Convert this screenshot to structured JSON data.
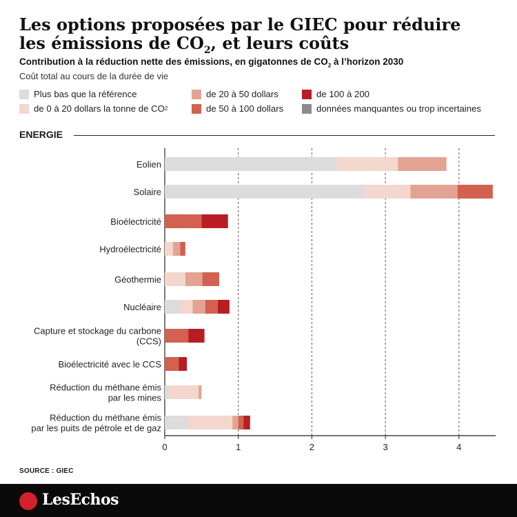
{
  "header": {
    "title_line1": "Les options proposées par le GIEC pour réduire",
    "title_line2_pre": "les émissions de CO",
    "title_line2_sub": "2",
    "title_line2_post": ", et leurs coûts",
    "subtitle_pre": "Contribution à la réduction nette des émissions, en gigatonnes de CO",
    "subtitle_sub": "2",
    "subtitle_post": " à l’horizon 2030"
  },
  "legend": {
    "title": "Coût total au cours de la durée de vie",
    "items": [
      {
        "label": "Plus bas que la référence",
        "color": "#dcdcdc"
      },
      {
        "label": "de 0 à 20 dollars la tonne de CO",
        "sub": "2",
        "color": "#f4d7cc"
      },
      {
        "label": "de 20 à 50 dollars",
        "color": "#e3a393"
      },
      {
        "label": "de 50 à 100 dollars",
        "color": "#d2614f"
      },
      {
        "label": "de 100 à 200",
        "color": "#b81d24"
      },
      {
        "label": "données manquantes ou trop incertaines",
        "color": "#8a8a8a"
      }
    ]
  },
  "section": {
    "label": "ENERGIE"
  },
  "chart_data": {
    "type": "bar",
    "orientation": "horizontal",
    "stacked": true,
    "xlim": [
      0,
      4.5
    ],
    "xticks": [
      "0",
      "1",
      "2",
      "3",
      "4"
    ],
    "grid": "dashed vertical lines at 1, 2, 3, 4",
    "series_names": [
      "Plus bas que la référence",
      "de 0 à 20 dollars la tonne de CO2",
      "de 20 à 50 dollars",
      "de 50 à 100 dollars",
      "de 100 à 200"
    ],
    "categories": [
      {
        "label": [
          "Eolien"
        ],
        "values": [
          2.35,
          0.82,
          0.66,
          0,
          0
        ]
      },
      {
        "label": [
          "Solaire"
        ],
        "values": [
          2.72,
          0.62,
          0.64,
          0.48,
          0
        ]
      },
      {
        "label": [
          "Bioélectricité"
        ],
        "values": [
          0,
          0,
          0,
          0.5,
          0.36
        ]
      },
      {
        "label": [
          "Hydroélectricité"
        ],
        "values": [
          0,
          0.11,
          0.1,
          0.07,
          0
        ]
      },
      {
        "label": [
          "Géothermie"
        ],
        "values": [
          0,
          0.28,
          0.23,
          0.23,
          0
        ]
      },
      {
        "label": [
          "Nucléaire"
        ],
        "values": [
          0.21,
          0.17,
          0.17,
          0.17,
          0.16
        ]
      },
      {
        "label": [
          "Capture et stockage du carbone",
          "(CCS)"
        ],
        "values": [
          0,
          0,
          0,
          0.32,
          0.22
        ]
      },
      {
        "label": [
          "Bioélectricité avec le CCS"
        ],
        "values": [
          0,
          0,
          0,
          0.19,
          0.11
        ]
      },
      {
        "label": [
          "Réduction du méthane émis",
          "par les mines"
        ],
        "values": [
          0.06,
          0.4,
          0.04,
          0,
          0
        ]
      },
      {
        "label": [
          "Réduction du méthane émis",
          "par les puits de pétrole et de gaz"
        ],
        "values": [
          0.31,
          0.61,
          0.08,
          0.07,
          0.09
        ]
      }
    ]
  },
  "footer": {
    "source": "SOURCE : GIEC",
    "brand": "LesEchos"
  }
}
